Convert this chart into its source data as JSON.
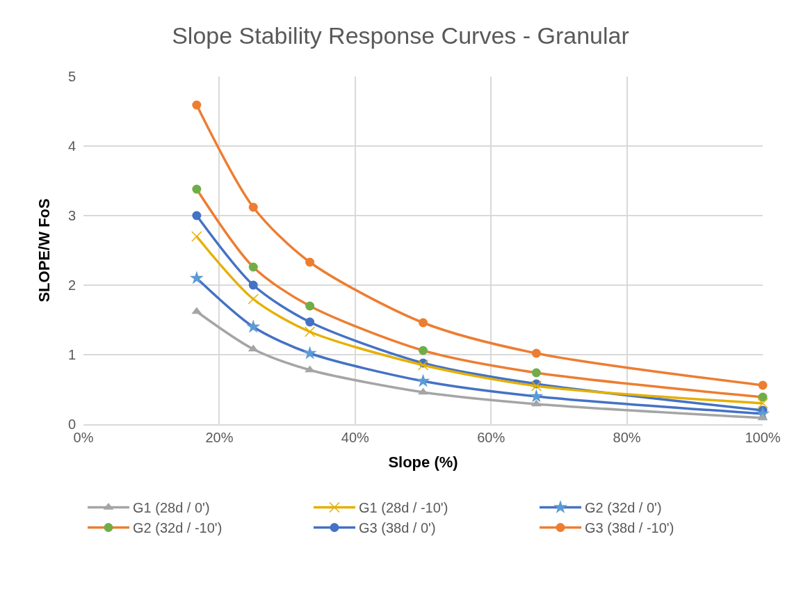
{
  "chart_data": {
    "type": "line",
    "title": "Slope Stability Response Curves - Granular",
    "xlabel": "Slope (%)",
    "ylabel": "SLOPE/W FoS",
    "x": [
      16.67,
      25,
      33.33,
      50,
      66.67,
      100
    ],
    "xlim": [
      0,
      100
    ],
    "xticks": [
      {
        "value": 0,
        "label": "0%"
      },
      {
        "value": 20,
        "label": "20%"
      },
      {
        "value": 40,
        "label": "40%"
      },
      {
        "value": 60,
        "label": "60%"
      },
      {
        "value": 80,
        "label": "80%"
      },
      {
        "value": 100,
        "label": "100%"
      }
    ],
    "ylim": [
      0,
      5
    ],
    "yticks": [
      0,
      1,
      2,
      3,
      4,
      5
    ],
    "grid": true,
    "legend": "bottom",
    "line_style": "solid",
    "series": [
      {
        "name": "G1 (28d / 0')",
        "color": "#a5a5a5",
        "marker": "triangle",
        "values": [
          1.62,
          1.08,
          0.78,
          0.46,
          0.29,
          0.09
        ]
      },
      {
        "name": "G1 (28d / -10')",
        "color": "#e5b000",
        "marker": "cross",
        "values": [
          2.7,
          1.8,
          1.33,
          0.85,
          0.55,
          0.3
        ]
      },
      {
        "name": "G2 (32d / 0')",
        "color": "#4472c4",
        "marker": "star",
        "colors": [
          "#5b9bd5",
          "#5b9bd5",
          "#5b9bd5",
          "#5b9bd5",
          "#5b9bd5",
          "#5b9bd5"
        ],
        "values": [
          2.1,
          1.4,
          1.02,
          0.62,
          0.4,
          0.15
        ]
      },
      {
        "name": "G2 (32d / -10')",
        "color": "#ed7d31",
        "marker": "circle",
        "colors": [
          "#70ad47",
          "#70ad47",
          "#70ad47",
          "#70ad47",
          "#70ad47",
          "#70ad47"
        ],
        "values": [
          3.38,
          2.26,
          1.7,
          1.06,
          0.74,
          0.39
        ]
      },
      {
        "name": "G3 (38d / 0')",
        "color": "#4472c4",
        "marker": "circle",
        "values": [
          3.0,
          2.0,
          1.47,
          0.88,
          0.58,
          0.2
        ]
      },
      {
        "name": "G3 (38d / -10')",
        "color": "#ed7d31",
        "marker": "circle",
        "values": [
          4.59,
          3.12,
          2.33,
          1.46,
          1.02,
          0.56
        ]
      }
    ]
  }
}
